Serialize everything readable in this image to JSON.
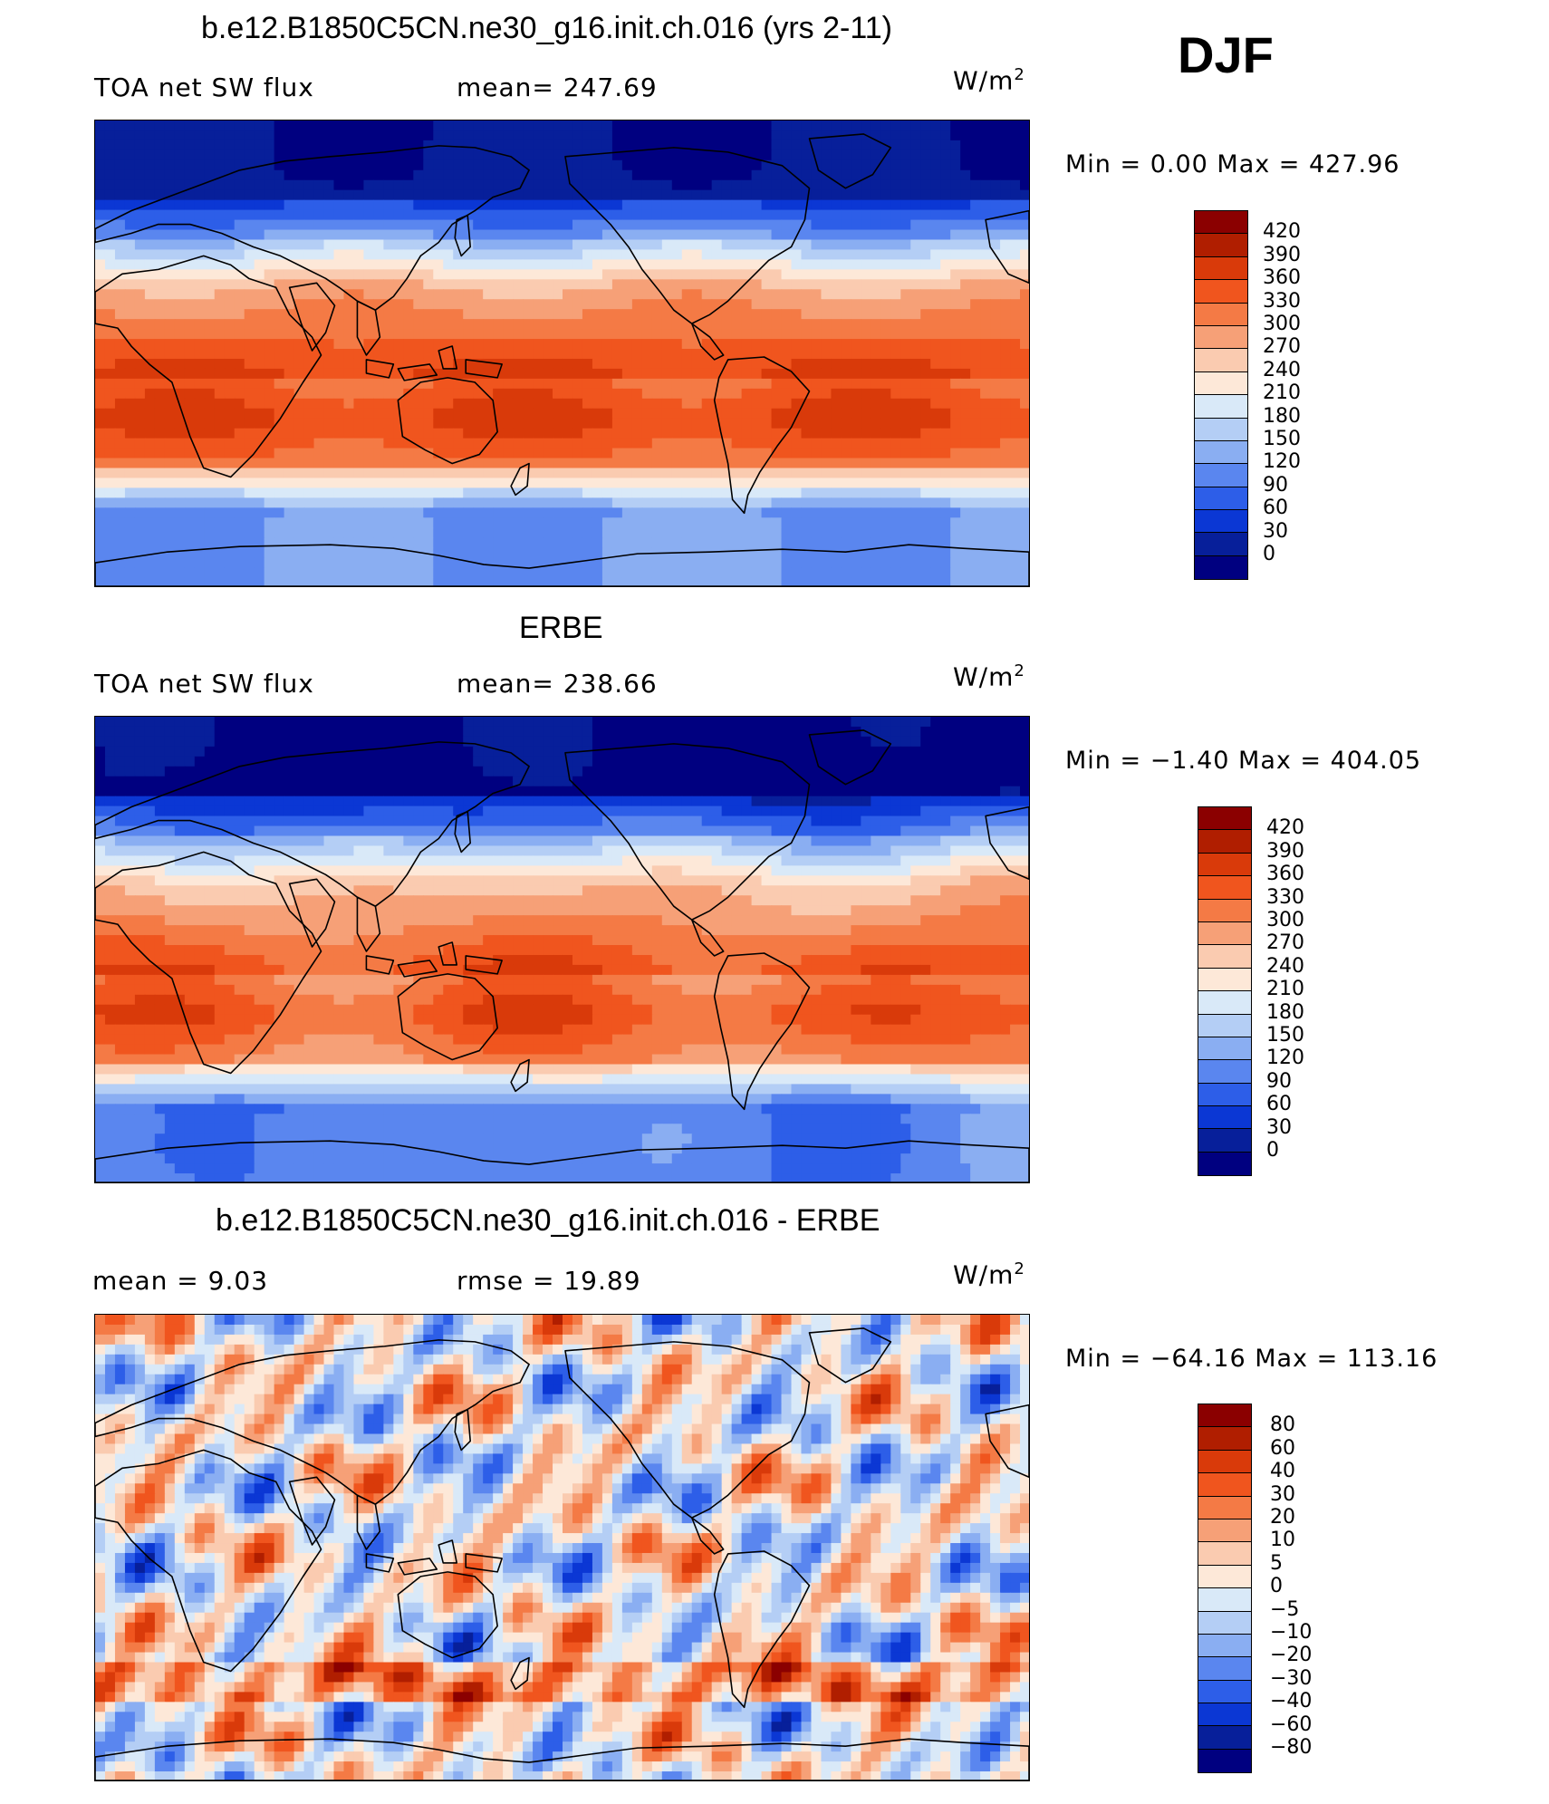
{
  "season": "DJF",
  "panels": [
    {
      "title": "b.e12.B1850C5CN.ne30_g16.init.ch.016 (yrs 2-11)",
      "subtitle_left": "TOA net SW flux",
      "subtitle_mid": "mean=  247.69",
      "units": "W/m",
      "units_sup": "2",
      "minmax": "Min =     0.00 Max =  427.96",
      "colorbar": {
        "labels": [
          "420",
          "390",
          "360",
          "330",
          "300",
          "270",
          "240",
          "210",
          "180",
          "150",
          "120",
          "90",
          "60",
          "30",
          "0"
        ],
        "colors": [
          "#8b0000",
          "#b01e00",
          "#d93a0a",
          "#f0551e",
          "#f47a45",
          "#f6a077",
          "#facbb0",
          "#fde8d8",
          "#d9e9f8",
          "#b4cef5",
          "#8aaef2",
          "#5a86ef",
          "#2d5ee8",
          "#0b37d4",
          "#071f9a",
          "#000080"
        ]
      },
      "field": "model"
    },
    {
      "title": "ERBE",
      "subtitle_left": "TOA net SW flux",
      "subtitle_mid": "mean=  238.66",
      "units": "W/m",
      "units_sup": "2",
      "minmax": "Min =   −1.40 Max =  404.05",
      "colorbar": {
        "labels": [
          "420",
          "390",
          "360",
          "330",
          "300",
          "270",
          "240",
          "210",
          "180",
          "150",
          "120",
          "90",
          "60",
          "30",
          "0"
        ],
        "colors": [
          "#8b0000",
          "#b01e00",
          "#d93a0a",
          "#f0551e",
          "#f47a45",
          "#f6a077",
          "#facbb0",
          "#fde8d8",
          "#d9e9f8",
          "#b4cef5",
          "#8aaef2",
          "#5a86ef",
          "#2d5ee8",
          "#0b37d4",
          "#071f9a",
          "#000080"
        ]
      },
      "field": "obs"
    },
    {
      "title": "b.e12.B1850C5CN.ne30_g16.init.ch.016 - ERBE",
      "subtitle_left": "mean =      9.03",
      "subtitle_mid": "rmse =    19.89",
      "units": "W/m",
      "units_sup": "2",
      "minmax": "Min = −64.16 Max =  113.16",
      "colorbar": {
        "labels": [
          "80",
          "60",
          "40",
          "30",
          "20",
          "10",
          "5",
          "0",
          "−5",
          "−10",
          "−20",
          "−30",
          "−40",
          "−60",
          "−80"
        ],
        "colors": [
          "#8b0000",
          "#b01e00",
          "#d93a0a",
          "#f0551e",
          "#f47a45",
          "#f6a077",
          "#facbb0",
          "#fde8d8",
          "#d9e9f8",
          "#b4cef5",
          "#8aaef2",
          "#5a86ef",
          "#2d5ee8",
          "#0b37d4",
          "#071f9a",
          "#000080"
        ]
      },
      "field": "diff"
    }
  ]
}
